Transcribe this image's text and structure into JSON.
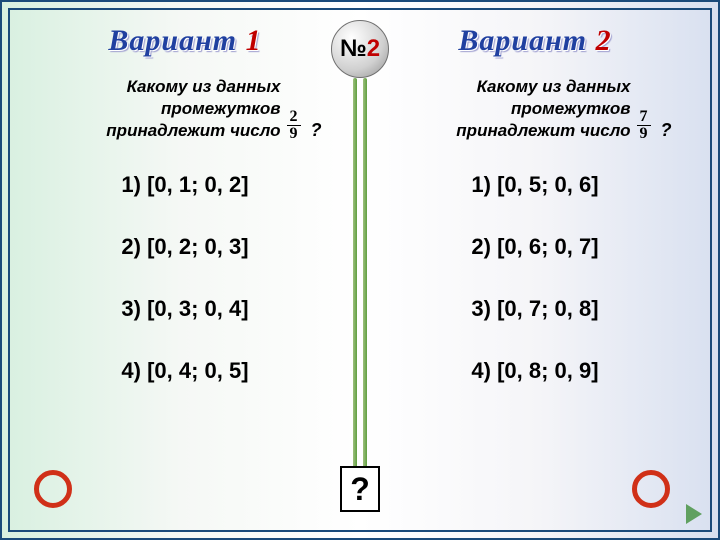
{
  "badge": {
    "symbol": "№",
    "number": "2",
    "number_color": "#c00000"
  },
  "columns": {
    "left": {
      "title_prefix": "Вариант",
      "title_num": "1",
      "question_lines": "Какому из данных промежутков принадлежит число",
      "fraction": {
        "num": "2",
        "den": "9"
      },
      "qmark": "?",
      "options": [
        "1) [0, 1; 0, 2]",
        "2) [0, 2; 0, 3]",
        "3) [0, 3; 0, 4]",
        "4) [0, 4; 0, 5]"
      ]
    },
    "right": {
      "title_prefix": "Вариант",
      "title_num": "2",
      "question_lines": "Какому из данных промежутков принадлежит число",
      "fraction": {
        "num": "7",
        "den": "9"
      },
      "qmark": "?",
      "options": [
        "1)  [0, 5; 0, 6]",
        "2) [0, 6; 0, 7]",
        "3) [0, 7; 0, 8]",
        "4) [0, 8; 0, 9]"
      ]
    }
  },
  "bottom_mark": "?",
  "colors": {
    "frame": "#1a4a7a",
    "title": "#2040a0",
    "title_num": "#c00000",
    "ring": "#d03018",
    "divider": "#60a040"
  }
}
